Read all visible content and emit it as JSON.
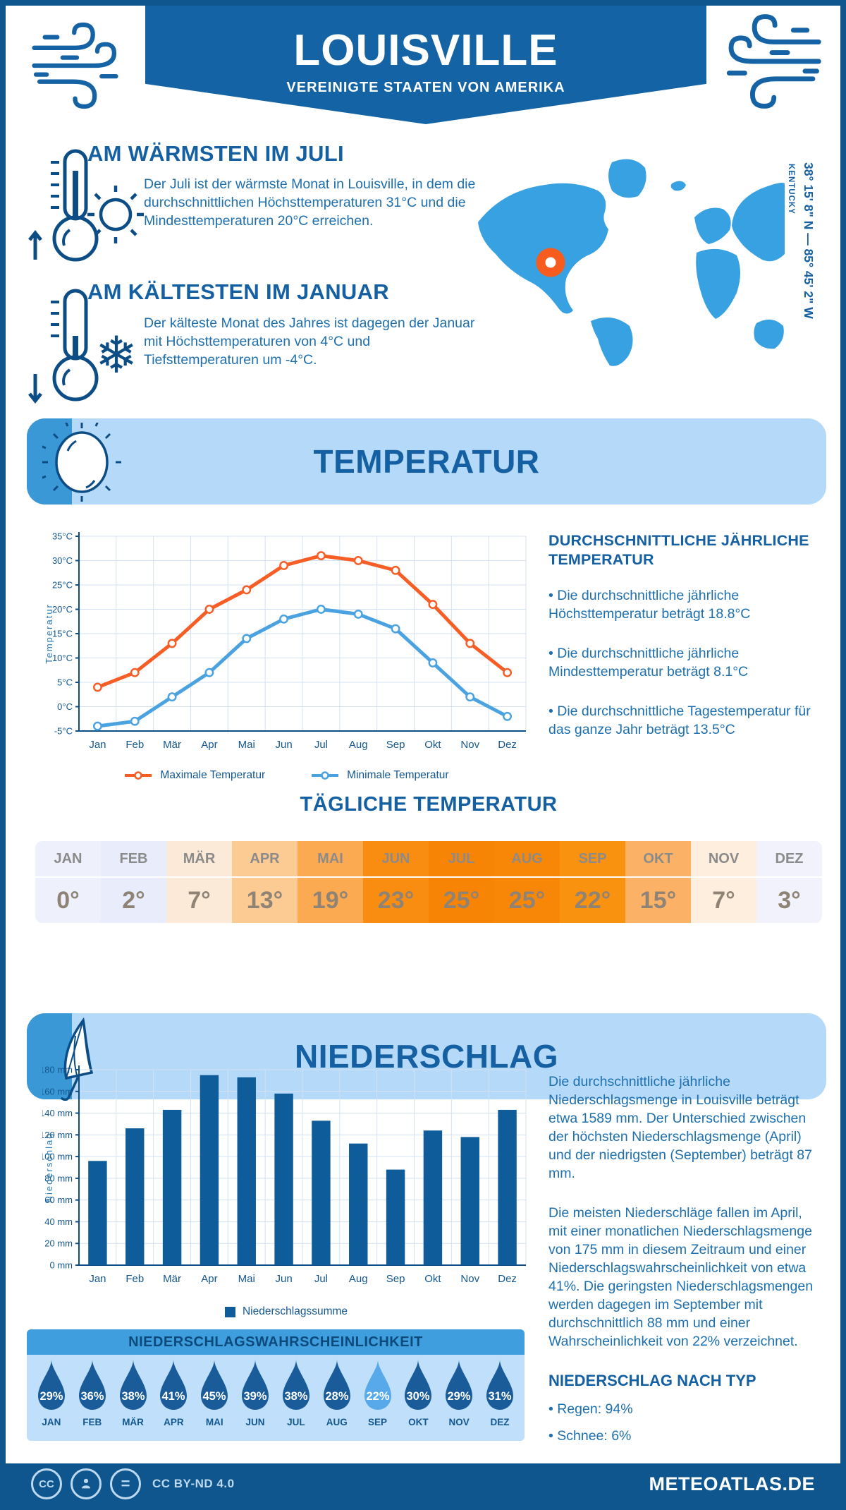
{
  "colors": {
    "dark_blue": "#0f568e",
    "banner_blue": "#1464a5",
    "heading_blue": "#1460a2",
    "text_blue": "#1e6fae",
    "axis_navy": "#14578f",
    "grid_blue": "#d3e1f2",
    "map_blue": "#38a1e2",
    "marker_orange": "#f65c1e",
    "light_banner": "#b5d9f8",
    "stripe_blue": "#3b98d6",
    "max_line": "#f65e26",
    "min_line": "#4aa3e0",
    "bar_blue": "#0e5c99",
    "panel_blue": "#bfdffa",
    "panel_header": "#3f9fde",
    "drop_dark": "#1a5c99",
    "drop_light": "#57a9e9"
  },
  "header": {
    "title": "LOUISVILLE",
    "subtitle": "VEREINIGTE STAATEN VON AMERIKA"
  },
  "warmest": {
    "heading": "AM WÄRMSTEN IM JULI",
    "text": "Der Juli ist der wärmste Monat in Louisville, in dem die durchschnittlichen Höchsttemperaturen 31°C und die Mindesttemperaturen 20°C erreichen."
  },
  "coldest": {
    "heading": "AM KÄLTESTEN IM JANUAR",
    "text": "Der kälteste Monat des Jahres ist dagegen der Januar mit Höchsttemperaturen von 4°C und Tiefsttemperaturen um -4°C."
  },
  "map": {
    "coordinates": "38° 15' 8\" N — 85° 45' 2\" W",
    "region": "KENTUCKY"
  },
  "temperature_section": {
    "title": "TEMPERATUR"
  },
  "chart_data": [
    {
      "type": "line",
      "months": [
        "Jan",
        "Feb",
        "Mär",
        "Apr",
        "Mai",
        "Jun",
        "Jul",
        "Aug",
        "Sep",
        "Okt",
        "Nov",
        "Dez"
      ],
      "series": [
        {
          "name": "Maximale Temperatur",
          "color": "#f65e26",
          "values": [
            4,
            7,
            13,
            20,
            24,
            29,
            31,
            30,
            28,
            21,
            13,
            7
          ]
        },
        {
          "name": "Minimale Temperatur",
          "color": "#4aa3e0",
          "values": [
            -4,
            -3,
            2,
            7,
            14,
            18,
            20,
            19,
            16,
            9,
            2,
            -2
          ]
        }
      ],
      "ylabel": "Temperatur",
      "ylim": [
        -5,
        35
      ],
      "ytick_step": 5,
      "y_unit": "°C",
      "grid": true,
      "legend_position": "bottom"
    },
    {
      "type": "bar",
      "months": [
        "Jan",
        "Feb",
        "Mär",
        "Apr",
        "Mai",
        "Jun",
        "Jul",
        "Aug",
        "Sep",
        "Okt",
        "Nov",
        "Dez"
      ],
      "series": [
        {
          "name": "Niederschlagssumme",
          "color": "#0e5c99",
          "values": [
            96,
            126,
            143,
            175,
            173,
            158,
            133,
            112,
            88,
            124,
            118,
            143
          ]
        }
      ],
      "ylabel": "Niederschlag",
      "ylim": [
        0,
        180
      ],
      "ytick_step": 20,
      "y_unit": " mm",
      "grid": true,
      "legend_position": "bottom"
    }
  ],
  "annual_temperature": {
    "heading": "DURCHSCHNITTLICHE JÄHRLICHE TEMPERATUR",
    "bullets": [
      "• Die durchschnittliche jährliche Höchsttemperatur beträgt 18.8°C",
      "• Die durchschnittliche jährliche Mindesttemperatur beträgt 8.1°C",
      "• Die durchschnittliche Tagestemperatur für das ganze Jahr beträgt 13.5°C"
    ]
  },
  "daily_temperature": {
    "title": "TÄGLICHE TEMPERATUR",
    "months": [
      "JAN",
      "FEB",
      "MÄR",
      "APR",
      "MAI",
      "JUN",
      "JUL",
      "AUG",
      "SEP",
      "OKT",
      "NOV",
      "DEZ"
    ],
    "values": [
      "0°",
      "2°",
      "7°",
      "13°",
      "19°",
      "23°",
      "25°",
      "25°",
      "22°",
      "15°",
      "7°",
      "3°"
    ],
    "cell_colors": [
      "#eef0fb",
      "#e9edfb",
      "#fcead8",
      "#fccb94",
      "#fbaa52",
      "#f98d12",
      "#f88406",
      "#f88708",
      "#f9920f",
      "#fbb266",
      "#fdeedd",
      "#f1f2fb"
    ]
  },
  "precipitation_section": {
    "title": "NIEDERSCHLAG"
  },
  "precipitation_text": {
    "p1": "Die durchschnittliche jährliche Niederschlagsmenge in Louisville beträgt etwa 1589 mm. Der Unterschied zwischen der höchsten Niederschlagsmenge (April) und der niedrigsten (September) beträgt 87 mm.",
    "p2": "Die meisten Niederschläge fallen im April, mit einer monatlichen Niederschlagsmenge von 175 mm in diesem Zeitraum und einer Niederschlagswahrscheinlichkeit von etwa 41%. Die geringsten Niederschlagsmengen werden dagegen im September mit durchschnittlich 88 mm und einer Wahrscheinlichkeit von 22% verzeichnet."
  },
  "precip_probability": {
    "title": "NIEDERSCHLAGSWAHRSCHEINLICHKEIT",
    "months": [
      "JAN",
      "FEB",
      "MÄR",
      "APR",
      "MAI",
      "JUN",
      "JUL",
      "AUG",
      "SEP",
      "OKT",
      "NOV",
      "DEZ"
    ],
    "values_pct": [
      29,
      36,
      38,
      41,
      45,
      39,
      38,
      28,
      22,
      30,
      29,
      31
    ],
    "highlight_month": "SEP"
  },
  "precip_type": {
    "heading": "NIEDERSCHLAG NACH TYP",
    "bullets": [
      "• Regen: 94%",
      "• Schnee: 6%"
    ]
  },
  "footer": {
    "license": "CC BY-ND 4.0",
    "site": "METEOATLAS.DE"
  }
}
